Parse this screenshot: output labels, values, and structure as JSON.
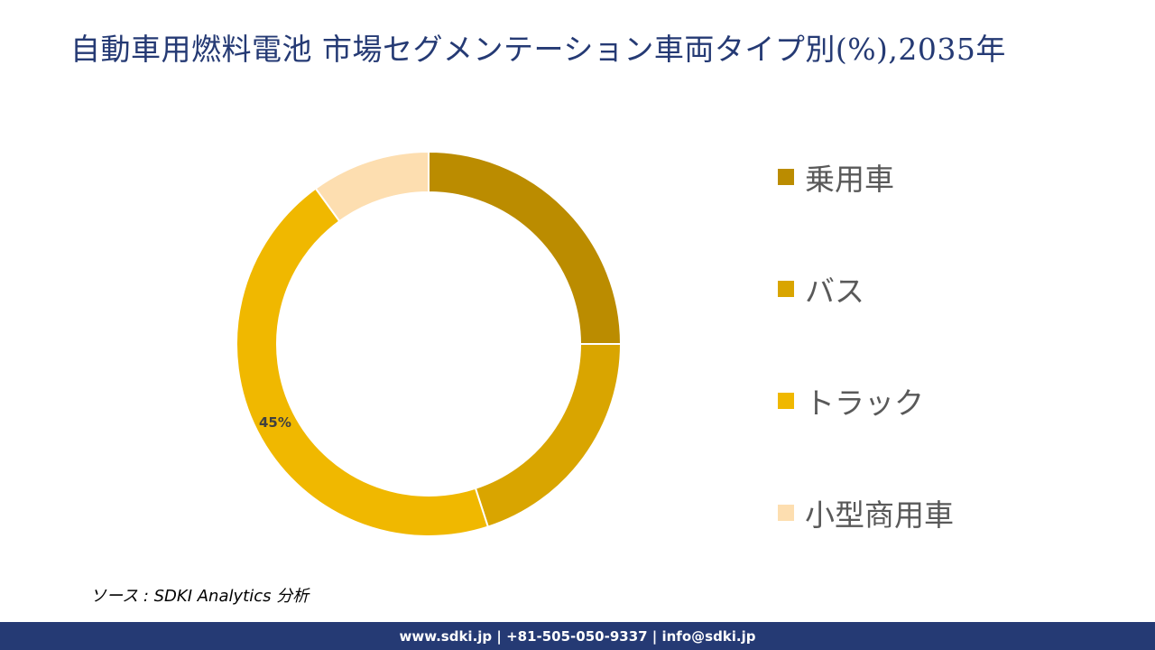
{
  "title": "自動車用燃料電池 市場セグメンテーション車両タイプ別(%),2035年",
  "chart_data": {
    "type": "pie",
    "subtype": "donut",
    "title": "自動車用燃料電池 市場セグメンテーション車両タイプ別(%),2035年",
    "categories": [
      "乗用車",
      "バス",
      "トラック",
      "小型商用車"
    ],
    "values": [
      25,
      20,
      45,
      10
    ],
    "colors": [
      "#bb8c00",
      "#d9a500",
      "#f0b800",
      "#fddeb0"
    ],
    "data_labels": [
      null,
      null,
      "45%",
      null
    ],
    "legend_position": "right",
    "start_angle_deg": 0,
    "direction": "clockwise"
  },
  "legend": {
    "items": [
      {
        "label": "乗用車",
        "color": "#bb8c00"
      },
      {
        "label": "バス",
        "color": "#d9a500"
      },
      {
        "label": "トラック",
        "color": "#f0b800"
      },
      {
        "label": "小型商用車",
        "color": "#fddeb0"
      }
    ]
  },
  "labels": {
    "truck_pct": "45%"
  },
  "source": "ソース : SDKI Analytics  分析",
  "footer": {
    "contact": "www.sdki.jp | +81-505-050-9337 | info@sdki.jp"
  }
}
